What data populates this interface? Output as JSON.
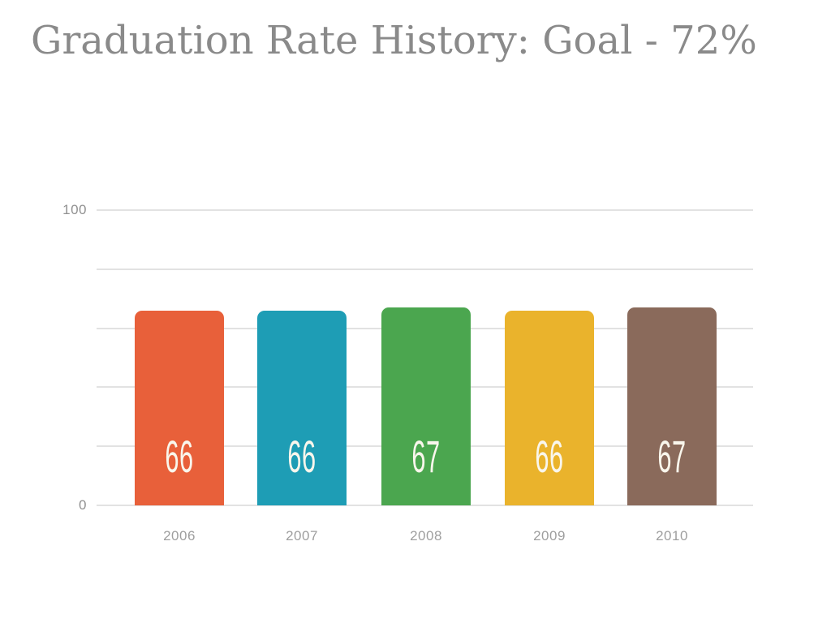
{
  "title": "Graduation Rate History: Goal - 72%",
  "chart_data": {
    "type": "bar",
    "title": "Graduation Rate History: Goal - 72%",
    "goal_percent": 72,
    "categories": [
      "2006",
      "2007",
      "2008",
      "2009",
      "2010"
    ],
    "values": [
      66,
      66,
      67,
      66,
      67
    ],
    "value_labels": [
      "66",
      "66",
      "67",
      "66",
      "67"
    ],
    "bar_colors": [
      "#E8603A",
      "#1E9DB5",
      "#4BA64F",
      "#EAB32C",
      "#8A6A5B"
    ],
    "xlabel": "",
    "ylabel": "",
    "ylim": [
      0,
      100
    ],
    "y_ticks": [
      "100",
      "0"
    ],
    "gridline_values": [
      100,
      80,
      60,
      40,
      20,
      0
    ],
    "grid": "on",
    "legend": "none",
    "colors": {
      "title_text": "#8A8A8A",
      "grid_line": "#E2E2E2",
      "y_tick_text": "#909090",
      "x_tick_text": "#9E9E9E",
      "bar_value_text": "#F9F6EC",
      "background": "#FFFFFF"
    }
  }
}
